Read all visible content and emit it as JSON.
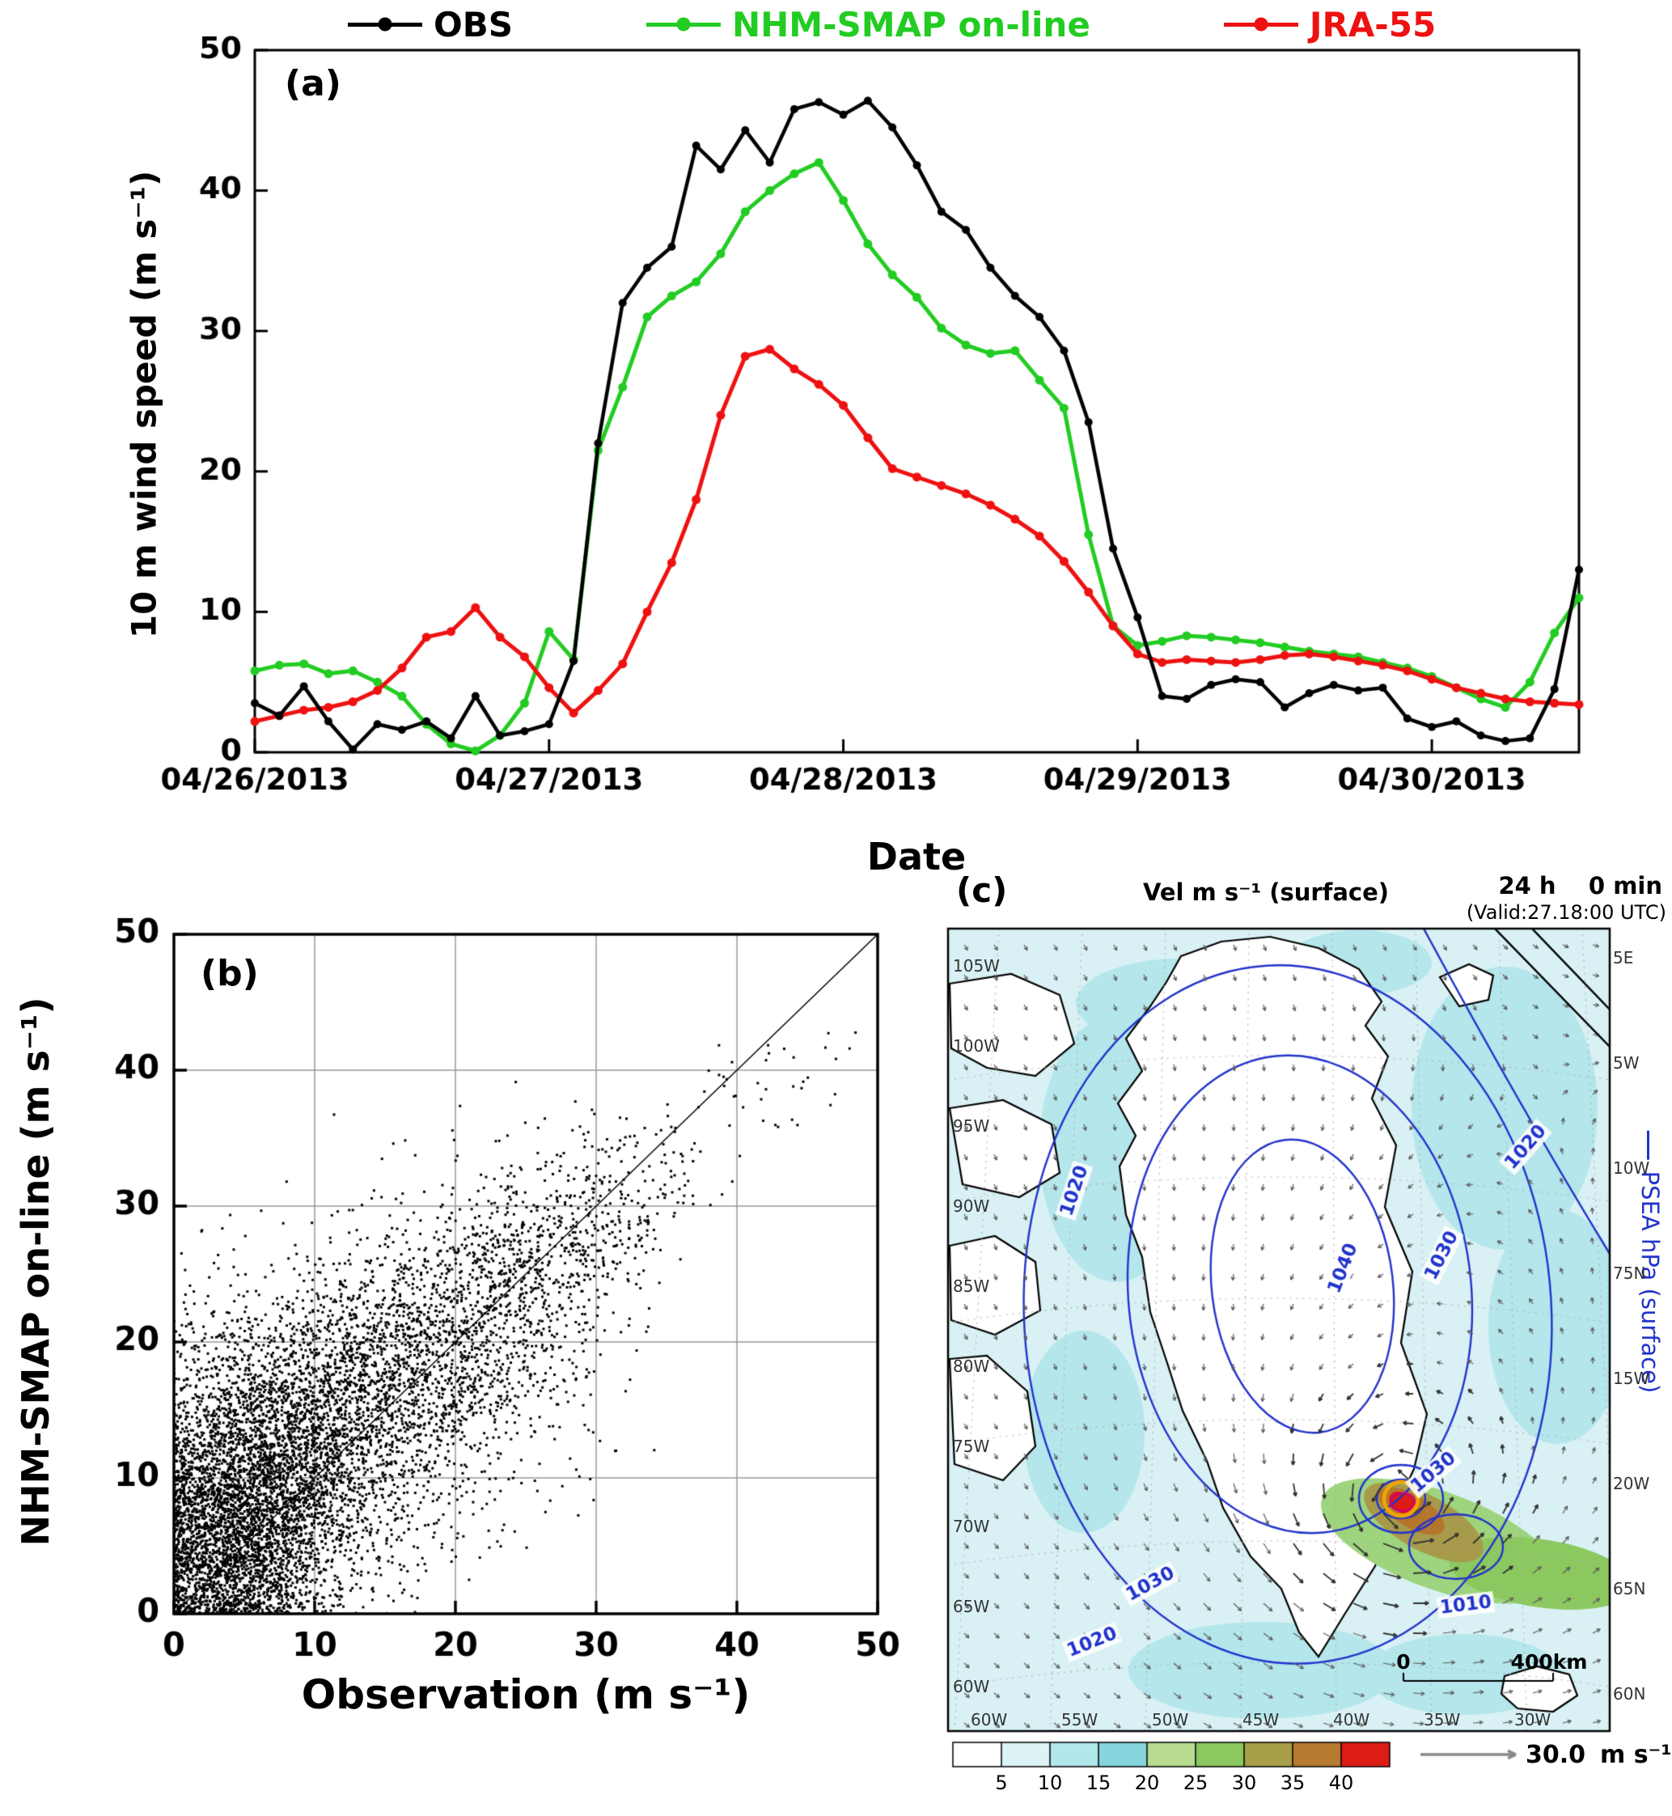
{
  "figure": {
    "panel_a_label": "(a)",
    "panel_b_label": "(b)",
    "panel_c_label": "(c)"
  },
  "legend": {
    "items": [
      {
        "label": "OBS",
        "color": "#000000"
      },
      {
        "label": "NHM-SMAP on-line",
        "color": "#22cc22"
      },
      {
        "label": "JRA-55",
        "color": "#ee1111"
      }
    ]
  },
  "chart_data": [
    {
      "id": "timeseries",
      "type": "line",
      "xlabel": "Date",
      "ylabel": "10 m wind speed (m s⁻¹)",
      "ylim": [
        0,
        50
      ],
      "yticks": [
        0,
        10,
        20,
        30,
        40,
        50
      ],
      "x_tick_labels": [
        "04/26/2013",
        "04/27/2013",
        "04/28/2013",
        "04/29/2013",
        "04/30/2013"
      ],
      "x_hours_step": 2,
      "x_span_hours": 108,
      "series": [
        {
          "name": "OBS",
          "color": "#000000",
          "values": [
            3.5,
            2.6,
            4.7,
            2.2,
            0.2,
            2.0,
            1.6,
            2.2,
            1.0,
            4.0,
            1.2,
            1.5,
            2.0,
            6.5,
            22.0,
            32.0,
            34.5,
            36.0,
            43.2,
            41.5,
            44.3,
            42.0,
            45.8,
            46.3,
            45.4,
            46.4,
            44.5,
            41.8,
            38.5,
            37.2,
            34.5,
            32.5,
            31.0,
            28.6,
            23.5,
            14.5,
            9.6,
            4.0,
            3.8,
            4.8,
            5.2,
            5.0,
            3.2,
            4.2,
            4.8,
            4.4,
            4.6,
            2.4,
            1.8,
            2.2,
            1.2,
            0.8,
            1.0,
            4.5,
            13.0
          ]
        },
        {
          "name": "NHM-SMAP on-line",
          "color": "#22cc22",
          "values": [
            5.8,
            6.2,
            6.3,
            5.6,
            5.8,
            5.0,
            4.0,
            2.0,
            0.6,
            0.1,
            1.2,
            3.5,
            8.6,
            6.6,
            21.5,
            26.0,
            31.0,
            32.5,
            33.5,
            35.5,
            38.5,
            40.0,
            41.2,
            42.0,
            39.3,
            36.2,
            34.0,
            32.4,
            30.2,
            29.0,
            28.4,
            28.6,
            26.5,
            24.5,
            15.5,
            9.0,
            7.6,
            7.9,
            8.3,
            8.2,
            8.0,
            7.8,
            7.5,
            7.2,
            7.0,
            6.8,
            6.4,
            6.0,
            5.4,
            4.6,
            3.8,
            3.2,
            5.0,
            8.5,
            11.0
          ]
        },
        {
          "name": "JRA-55",
          "color": "#ee1111",
          "values": [
            2.2,
            2.6,
            3.0,
            3.2,
            3.6,
            4.4,
            6.0,
            8.2,
            8.6,
            10.3,
            8.2,
            6.8,
            4.6,
            2.8,
            4.4,
            6.3,
            10.0,
            13.5,
            18.0,
            24.0,
            28.2,
            28.7,
            27.3,
            26.2,
            24.7,
            22.4,
            20.2,
            19.6,
            19.0,
            18.4,
            17.6,
            16.6,
            15.4,
            13.6,
            11.4,
            9.0,
            7.0,
            6.4,
            6.6,
            6.5,
            6.4,
            6.6,
            6.9,
            7.0,
            6.8,
            6.5,
            6.2,
            5.8,
            5.2,
            4.6,
            4.2,
            3.8,
            3.6,
            3.5,
            3.4
          ]
        }
      ]
    },
    {
      "id": "scatter",
      "type": "scatter",
      "xlabel": "Observation (m s⁻¹)",
      "ylabel": "NHM-SMAP on-line (m s⁻¹)",
      "xlim": [
        0,
        50
      ],
      "ylim": [
        0,
        50
      ],
      "ticks": [
        0,
        10,
        20,
        30,
        40,
        50
      ],
      "grid": true,
      "one_to_one_line": true,
      "point_cloud": {
        "seed": 7,
        "clusters": [
          {
            "n": 2600,
            "cx": 4,
            "cy": 6,
            "sx": 3,
            "sy": 4.5
          },
          {
            "n": 2200,
            "cx": 8,
            "cy": 11,
            "sx": 4,
            "sy": 5
          },
          {
            "n": 1500,
            "cx": 14,
            "cy": 16,
            "sx": 5,
            "sy": 5
          },
          {
            "n": 900,
            "cx": 20,
            "cy": 21,
            "sx": 4.5,
            "sy": 4.5
          },
          {
            "n": 450,
            "cx": 26,
            "cy": 26,
            "sx": 3.5,
            "sy": 3.5
          },
          {
            "n": 160,
            "cx": 30.5,
            "cy": 30,
            "sx": 2.5,
            "sy": 3
          },
          {
            "n": 120,
            "cx": 3,
            "cy": 18,
            "sx": 2,
            "sy": 4
          },
          {
            "n": 55,
            "cx": 35,
            "cy": 32.5,
            "sx": 3,
            "sy": 2.5
          },
          {
            "n": 28,
            "cx": 41,
            "cy": 38,
            "sx": 3,
            "sy": 2.2
          },
          {
            "n": 14,
            "cx": 31,
            "cy": 13,
            "sx": 3,
            "sy": 2
          },
          {
            "n": 10,
            "cx": 45.5,
            "cy": 41,
            "sx": 1.5,
            "sy": 1.5
          }
        ]
      }
    }
  ],
  "map": {
    "title": "Vel m s⁻¹ (surface)",
    "time_label": "24 h    0 min",
    "valid_label": "(Valid:27.18:00 UTC)",
    "right_axis_label": "PSEA hPa (surface)",
    "isobar_labels": [
      "1020",
      "1030",
      "1040",
      "1010"
    ],
    "scale_zero": "0",
    "scale_distance": "400km",
    "ref_value": "30.0",
    "ref_units": "m s⁻¹",
    "accent_circle_color": "#f0a500",
    "contour_color": "#2233cc",
    "colorbar": {
      "tick_labels": [
        "5",
        "10",
        "15",
        "20",
        "25",
        "30",
        "35",
        "40"
      ],
      "colors": [
        "#ffffff",
        "#dcf4f5",
        "#b2e7ec",
        "#86d5dd",
        "#b8dd90",
        "#8cc860",
        "#a8a048",
        "#b67a30",
        "#dd1c15"
      ]
    },
    "edge_labels_left": [
      "105W",
      "100W",
      "95W",
      "90W",
      "85W",
      "80W",
      "75W",
      "70W",
      "65W",
      "60W"
    ],
    "edge_labels_right": [
      "5E",
      "5W",
      "10W",
      "75N",
      "15W",
      "20W",
      "65N",
      "60N"
    ],
    "edge_labels_bottom": [
      "60W",
      "55W",
      "50W",
      "45W",
      "40W",
      "35W",
      "30W"
    ]
  }
}
